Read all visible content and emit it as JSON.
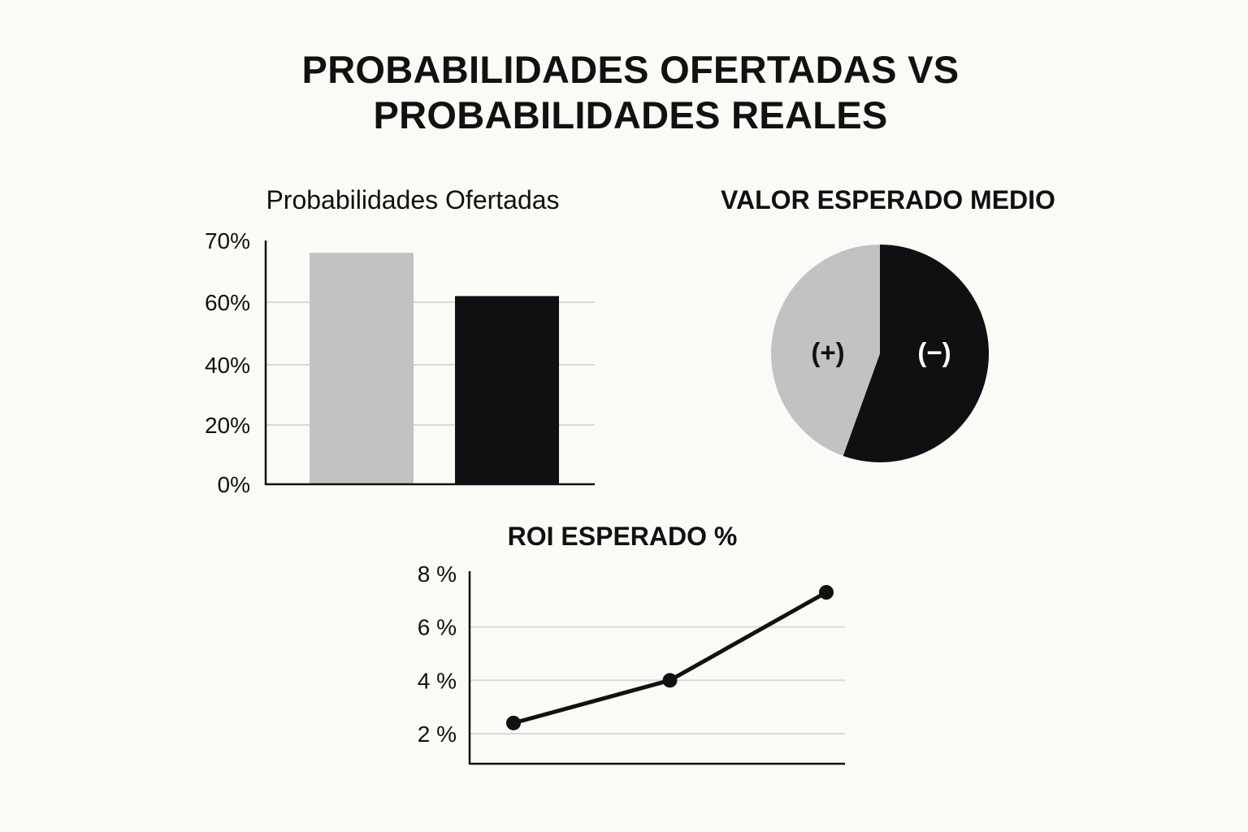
{
  "title_lines": [
    "PROBABILIDADES OFERTADAS VS",
    "PROBABILIDADES REALES"
  ],
  "colors": {
    "background": "#fbfaf6",
    "light": "#c2c2c2",
    "dark": "#0e1012",
    "grid": "#d9d9d9"
  },
  "chart_data": [
    {
      "type": "bar",
      "title": "Probabilidades Ofertadas",
      "xlabel": "",
      "ylabel": "",
      "categories": [
        "",
        ""
      ],
      "values": [
        68,
        61
      ],
      "colors": [
        "#c2c2c2",
        "#0e1012"
      ],
      "yticks": [
        0,
        20,
        40,
        60,
        70
      ],
      "ytick_labels": [
        "0%",
        "20%",
        "40%",
        "60%",
        "70%"
      ],
      "ylim": [
        0,
        70
      ],
      "grid": true
    },
    {
      "type": "pie",
      "title": "VALOR ESPERADO MEDIO",
      "labels": [
        "(+)",
        "(−)"
      ],
      "values": [
        44.5,
        55.5
      ],
      "colors": [
        "#c2c2c2",
        "#0e1012"
      ],
      "label_colors": [
        "#111111",
        "#ffffff"
      ]
    },
    {
      "type": "line",
      "title": "ROI ESPERADO %",
      "xlabel": "",
      "ylabel": "",
      "x": [
        1,
        2,
        3
      ],
      "y": [
        2.4,
        4.0,
        7.3
      ],
      "yticks": [
        2,
        4,
        6,
        8
      ],
      "ytick_labels": [
        "2 %",
        "4 %",
        "6 %",
        "8 %"
      ],
      "ylim": [
        0.9,
        8
      ],
      "grid": true
    }
  ]
}
